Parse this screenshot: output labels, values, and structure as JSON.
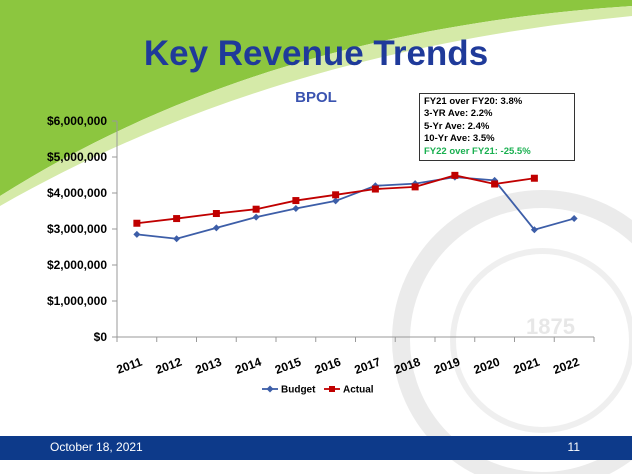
{
  "slide": {
    "title": "Key Revenue Trends",
    "subtitle": "BPOL",
    "footer_date": "October 18, 2021",
    "page_number": "11",
    "seal_year": "1875"
  },
  "annotation": {
    "lines": [
      "FY21 over FY20: 3.8%",
      "3-YR Ave: 2.2%",
      "5-Yr Ave: 2.4%",
      "10-Yr Ave:  3.5%",
      "FY22 over FY21: -25.5%"
    ]
  },
  "colors": {
    "title": "#1f3a9a",
    "budget": "#3d5ea8",
    "actual": "#c00000",
    "footer": "#0d3a8a",
    "highlight": "#19b050",
    "swoosh": "#8cc63f"
  },
  "chart_data": {
    "type": "line",
    "title": "BPOL",
    "xlabel": "",
    "ylabel": "",
    "categories": [
      "2011",
      "2012",
      "2013",
      "2014",
      "2015",
      "2016",
      "2017",
      "2018",
      "2019",
      "2020",
      "2021",
      "2022"
    ],
    "series": [
      {
        "name": "Budget",
        "color": "#3d5ea8",
        "marker": "diamond",
        "values": [
          2850000,
          2730000,
          3030000,
          3330000,
          3570000,
          3780000,
          4200000,
          4260000,
          4440000,
          4350000,
          2980000,
          3290000
        ]
      },
      {
        "name": "Actual",
        "color": "#c00000",
        "marker": "square",
        "values": [
          3160000,
          3290000,
          3430000,
          3550000,
          3790000,
          3950000,
          4110000,
          4170000,
          4490000,
          4250000,
          4410000,
          null
        ]
      }
    ],
    "yticks": [
      "$6,000,000",
      "$5,000,000",
      "$4,000,000",
      "$3,000,000",
      "$2,000,000",
      "$1,000,000",
      "$0"
    ],
    "ylim": [
      0,
      6000000
    ],
    "legend": "bottom",
    "grid": false
  }
}
